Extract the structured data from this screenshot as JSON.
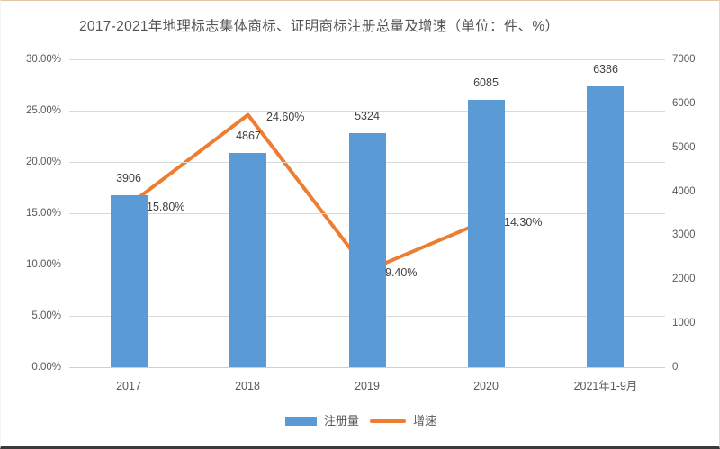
{
  "chart_data": {
    "type": "bar+line combo",
    "title": "2017-2021年地理标志集体商标、证明商标注册总量及增速（单位：件、%）",
    "categories": [
      "2017",
      "2018",
      "2019",
      "2020",
      "2021年1-9月"
    ],
    "series": [
      {
        "name": "注册量",
        "type": "bar",
        "axis": "right",
        "values": [
          3906,
          4867,
          5324,
          6085,
          6386
        ],
        "data_labels": [
          "3906",
          "4867",
          "5324",
          "6085",
          "6386"
        ],
        "color": "#5B9BD5"
      },
      {
        "name": "增速",
        "type": "line",
        "axis": "left",
        "values": [
          15.8,
          24.6,
          9.4,
          14.3,
          null
        ],
        "data_labels": [
          "15.80%",
          "24.60%",
          "9.40%",
          "14.30%"
        ],
        "color": "#ED7D31"
      }
    ],
    "left_axis": {
      "unit": "%",
      "min": 0,
      "max": 30,
      "ticks": [
        "30.00%",
        "25.00%",
        "20.00%",
        "15.00%",
        "10.00%",
        "5.00%",
        "0.00%"
      ]
    },
    "right_axis": {
      "unit": "件",
      "min": 0,
      "max": 7000,
      "ticks": [
        "7000",
        "6000",
        "5000",
        "4000",
        "3000",
        "2000",
        "1000",
        "0"
      ]
    },
    "legend_position": "bottom",
    "grid": "horizontal",
    "gridline_color": "#d9d9d9",
    "text_colors": {
      "title": "#555555",
      "axis": "#595959",
      "data_label": "#404040"
    }
  }
}
